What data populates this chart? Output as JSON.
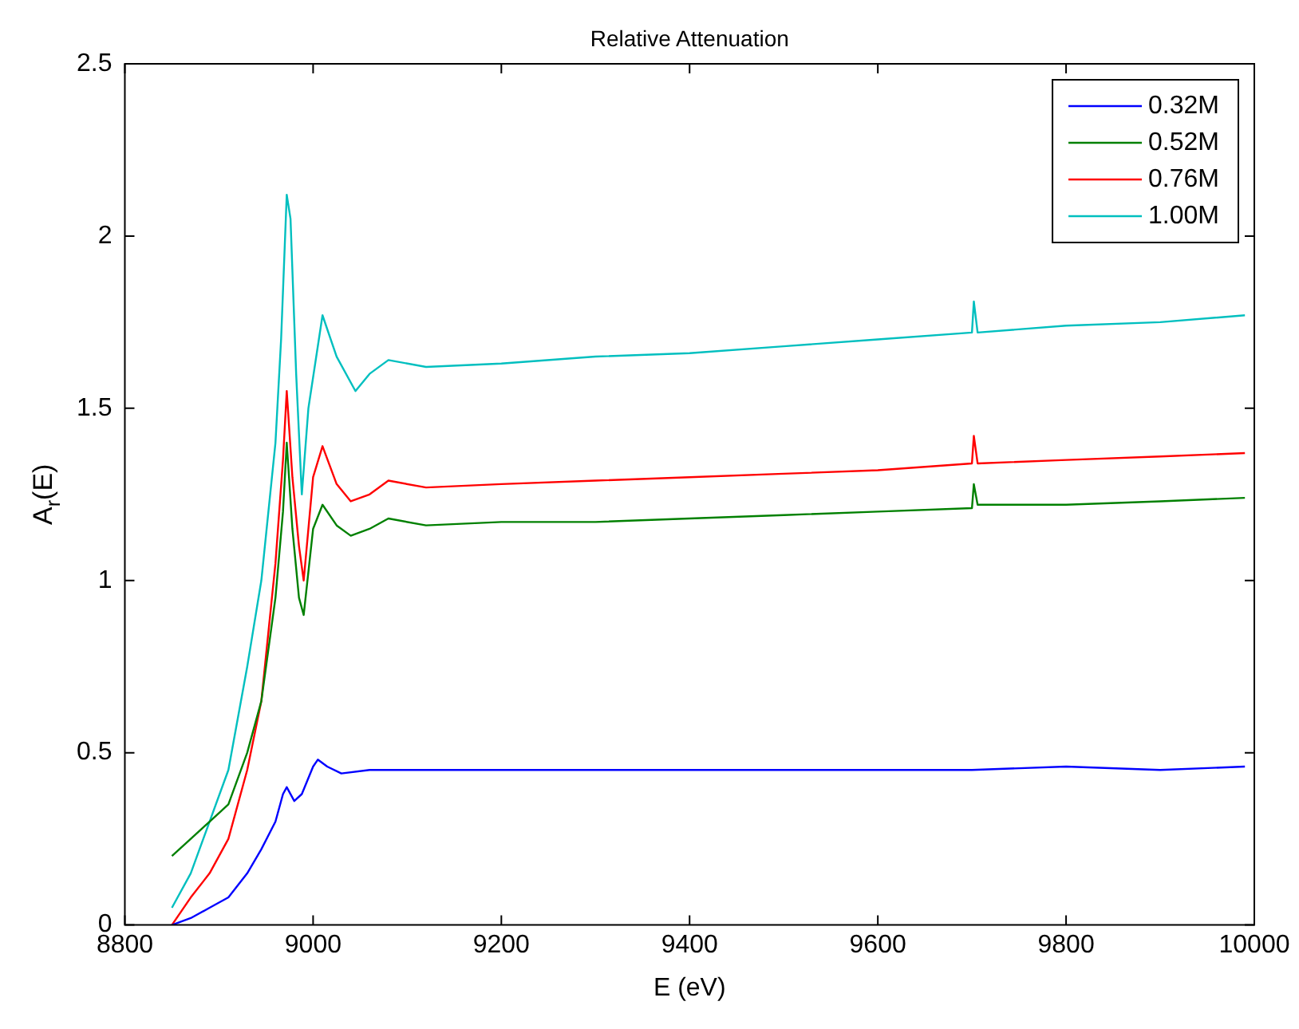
{
  "chart_data": {
    "type": "line",
    "title": "Relative Attenuation",
    "xlabel": "E (eV)",
    "ylabel": "A$_{r}$(E)",
    "xlim": [
      8800,
      10000
    ],
    "xticks": [
      8800,
      9000,
      9200,
      9400,
      9600,
      9800,
      10000
    ],
    "ylim": [
      0,
      2.5
    ],
    "yticks": [
      0,
      0.5,
      1,
      1.5,
      2,
      2.5
    ],
    "grid": false,
    "legend": "top right",
    "marker": "none",
    "line_style": "solid",
    "series": [
      {
        "name": "0.32M",
        "color": "#0000ff",
        "x": [
          8850,
          8870,
          8890,
          8910,
          8930,
          8945,
          8960,
          8968,
          8972,
          8980,
          8988,
          9000,
          9005,
          9015,
          9030,
          9060,
          9100,
          9200,
          9300,
          9400,
          9500,
          9600,
          9700,
          9800,
          9900,
          9990
        ],
        "values": [
          0.0,
          0.02,
          0.05,
          0.08,
          0.15,
          0.22,
          0.3,
          0.38,
          0.4,
          0.36,
          0.38,
          0.46,
          0.48,
          0.46,
          0.44,
          0.45,
          0.45,
          0.45,
          0.45,
          0.45,
          0.45,
          0.45,
          0.45,
          0.46,
          0.45,
          0.46
        ]
      },
      {
        "name": "0.52M",
        "color": "#008000",
        "x": [
          8850,
          8870,
          8890,
          8910,
          8930,
          8945,
          8960,
          8968,
          8972,
          8978,
          8985,
          8990,
          9000,
          9010,
          9025,
          9040,
          9060,
          9080,
          9120,
          9200,
          9300,
          9400,
          9500,
          9600,
          9700,
          9702,
          9706,
          9800,
          9900,
          9990
        ],
        "values": [
          0.2,
          0.25,
          0.3,
          0.35,
          0.5,
          0.65,
          0.95,
          1.2,
          1.4,
          1.15,
          0.95,
          0.9,
          1.15,
          1.22,
          1.16,
          1.13,
          1.15,
          1.18,
          1.16,
          1.17,
          1.17,
          1.18,
          1.19,
          1.2,
          1.21,
          1.28,
          1.22,
          1.22,
          1.23,
          1.24
        ]
      },
      {
        "name": "0.76M",
        "color": "#ff0000",
        "x": [
          8850,
          8870,
          8890,
          8910,
          8930,
          8945,
          8960,
          8968,
          8972,
          8978,
          8985,
          8990,
          9000,
          9010,
          9025,
          9040,
          9060,
          9080,
          9120,
          9200,
          9300,
          9400,
          9500,
          9600,
          9700,
          9702,
          9706,
          9800,
          9900,
          9990
        ],
        "values": [
          0.0,
          0.08,
          0.15,
          0.25,
          0.45,
          0.65,
          1.05,
          1.35,
          1.55,
          1.3,
          1.1,
          1.0,
          1.3,
          1.39,
          1.28,
          1.23,
          1.25,
          1.29,
          1.27,
          1.28,
          1.29,
          1.3,
          1.31,
          1.32,
          1.34,
          1.42,
          1.34,
          1.35,
          1.36,
          1.37
        ]
      },
      {
        "name": "1.00M",
        "color": "#00bfbf",
        "x": [
          8850,
          8870,
          8890,
          8910,
          8930,
          8945,
          8960,
          8966,
          8972,
          8976,
          8982,
          8988,
          8995,
          9010,
          9025,
          9045,
          9060,
          9080,
          9120,
          9200,
          9300,
          9400,
          9500,
          9600,
          9700,
          9702,
          9706,
          9800,
          9900,
          9990
        ],
        "values": [
          0.05,
          0.15,
          0.3,
          0.45,
          0.75,
          1.0,
          1.4,
          1.7,
          2.12,
          2.05,
          1.6,
          1.25,
          1.5,
          1.77,
          1.65,
          1.55,
          1.6,
          1.64,
          1.62,
          1.63,
          1.65,
          1.66,
          1.68,
          1.7,
          1.72,
          1.81,
          1.72,
          1.74,
          1.75,
          1.77
        ]
      }
    ]
  }
}
